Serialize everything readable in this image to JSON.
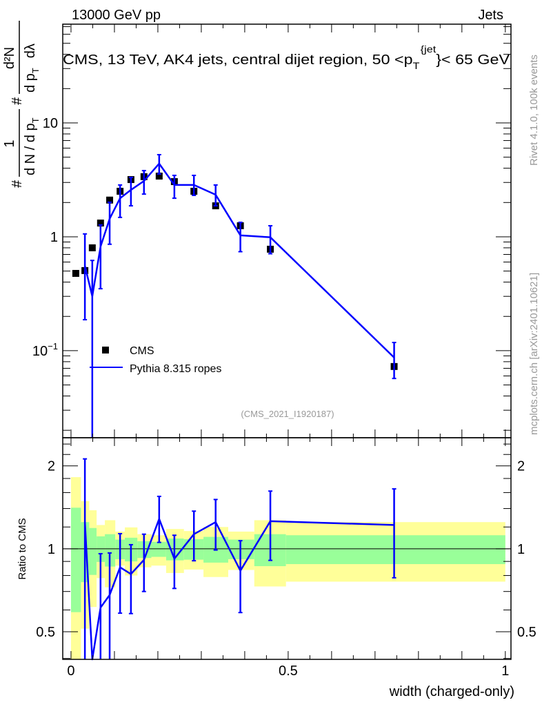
{
  "header": {
    "beam": "13000 GeV pp",
    "process": "Jets"
  },
  "side_labels": {
    "rivet": "Rivet 4.1.0,  100k events",
    "mcplots": "mcplots.cern.ch [arXiv:2401.10621]"
  },
  "chart_data": [
    {
      "type": "line",
      "panel": "main",
      "title_parts": {
        "before": "CMS, 13 TeV, AK4 jets, central dijet region, 50 <p",
        "sub": "T",
        "sup": "{jet",
        "after": "}< 65 GeV"
      },
      "ylabel": {
        "prefix": "#",
        "num1": "1",
        "den1": "d N / d p",
        "den1_sub": "T",
        "mid": "#",
        "num2": "d²N",
        "den2": "d p",
        "den2_sub": "T",
        "den2_end": "dλ"
      },
      "yscale": "log",
      "ylim": [
        0.0172,
        73.6
      ],
      "xlim": [
        -0.019,
        1.013
      ],
      "yticks": [
        {
          "value": 0.1,
          "label": "10",
          "sup": "−1"
        },
        {
          "value": 1,
          "label": "1",
          "sup": ""
        },
        {
          "value": 10,
          "label": "10",
          "sup": ""
        }
      ],
      "legend": {
        "position": "lower-left",
        "entries": [
          {
            "name": "CMS",
            "marker": "square",
            "color": "#000000"
          },
          {
            "name": "Pythia 8.315 ropes",
            "marker": "line",
            "color": "#0000ff"
          }
        ]
      },
      "annotation": "(CMS_2021_I1920187)",
      "series": [
        {
          "name": "CMS",
          "x": [
            0.011,
            0.032,
            0.049,
            0.068,
            0.089,
            0.113,
            0.138,
            0.168,
            0.203,
            0.238,
            0.283,
            0.333,
            0.39,
            0.459,
            0.744
          ],
          "y": [
            0.477,
            0.505,
            0.8,
            1.32,
            2.1,
            2.51,
            3.18,
            3.37,
            3.41,
            3.05,
            2.51,
            1.87,
            1.25,
            0.778,
            0.0726
          ]
        },
        {
          "name": "Pythia 8.315 ropes",
          "x": [
            0.032,
            0.049,
            0.068,
            0.089,
            0.113,
            0.138,
            0.168,
            0.203,
            0.238,
            0.283,
            0.333,
            0.39,
            0.459,
            0.744
          ],
          "y": [
            0.556,
            0.3,
            0.82,
            1.44,
            2.18,
            2.58,
            3.09,
            4.39,
            2.85,
            2.85,
            2.34,
            1.03,
            0.99,
            0.087
          ],
          "err_high": [
            1.06,
            0.62,
            1.27,
            2.01,
            2.85,
            3.32,
            3.81,
            5.26,
            3.46,
            3.46,
            2.85,
            1.34,
            1.25,
            0.118
          ],
          "err_low": [
            0.187,
            0.01,
            0.35,
            0.86,
            1.48,
            1.87,
            2.37,
            3.56,
            2.18,
            2.31,
            1.87,
            0.74,
            0.71,
            0.057
          ]
        }
      ]
    },
    {
      "type": "line",
      "panel": "ratio",
      "ylabel": "Ratio to CMS",
      "xlabel": "width (charged-only)",
      "yscale": "log2",
      "ylim": [
        0.397,
        2.53
      ],
      "xlim": [
        -0.019,
        1.013
      ],
      "yticks": [
        {
          "value": 0.5,
          "label": "0.5"
        },
        {
          "value": 1,
          "label": "1"
        },
        {
          "value": 2,
          "label": "2"
        }
      ],
      "xticks": [
        {
          "value": 0,
          "label": "0"
        },
        {
          "value": 0.5,
          "label": "0.5"
        },
        {
          "value": 1,
          "label": "1"
        }
      ],
      "bands": {
        "bin_edges": [
          0,
          0.023,
          0.042,
          0.059,
          0.078,
          0.102,
          0.124,
          0.153,
          0.185,
          0.219,
          0.26,
          0.305,
          0.362,
          0.422,
          0.495,
          1.0
        ],
        "green_high": [
          1.41,
          1.25,
          1.19,
          1.11,
          1.13,
          1.08,
          1.097,
          1.066,
          1.06,
          1.09,
          1.084,
          1.105,
          1.08,
          1.13,
          1.12
        ],
        "green_low": [
          0.589,
          0.757,
          0.804,
          0.896,
          0.862,
          0.917,
          0.9,
          0.926,
          0.935,
          0.908,
          0.913,
          0.891,
          0.917,
          0.865,
          0.88
        ],
        "yellow_high": [
          1.82,
          1.49,
          1.38,
          1.22,
          1.27,
          1.155,
          1.196,
          1.13,
          1.12,
          1.18,
          1.16,
          1.2,
          1.155,
          1.27,
          1.25
        ],
        "yellow_low": [
          0.3,
          0.513,
          0.615,
          0.783,
          0.725,
          0.869,
          0.8,
          0.857,
          0.869,
          0.817,
          0.841,
          0.79,
          0.838,
          0.73,
          0.76
        ],
        "green_color": "#99ff99",
        "yellow_color": "#ffff99"
      },
      "series": [
        {
          "name": "Pythia 8.315 ropes / CMS",
          "x": [
            0.032,
            0.049,
            0.068,
            0.089,
            0.113,
            0.138,
            0.168,
            0.203,
            0.238,
            0.283,
            0.333,
            0.39,
            0.459,
            0.744
          ],
          "y": [
            1.25,
            0.38,
            0.612,
            0.68,
            0.857,
            0.81,
            0.912,
            1.284,
            0.92,
            1.13,
            1.25,
            0.833,
            1.26,
            1.22
          ],
          "err_high": [
            2.12,
            null,
            0.96,
            0.966,
            1.135,
            1.035,
            1.13,
            1.55,
            1.12,
            1.37,
            1.51,
            1.07,
            1.62,
            1.65
          ],
          "err_low": [
            0.3,
            null,
            0.3,
            0.3,
            0.584,
            0.582,
            0.7,
            1.055,
            0.718,
            0.905,
            0.99,
            0.587,
            0.908,
            0.785
          ]
        }
      ]
    }
  ]
}
